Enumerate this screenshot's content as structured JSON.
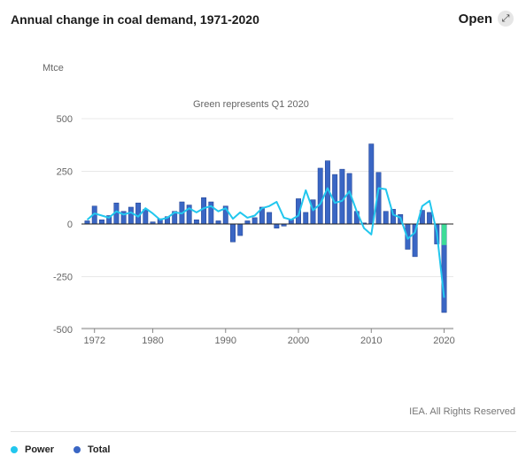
{
  "header": {
    "title": "Annual change in coal demand, 1971-2020",
    "open_label": "Open",
    "open_icon": "expand-arrow-icon"
  },
  "chart_data": {
    "type": "bar",
    "title": "Annual change in coal demand, 1971-2020",
    "unit_label": "Mtce",
    "annotation": "Green represents Q1 2020",
    "ylim": [
      -500,
      500
    ],
    "yticks": [
      500,
      250,
      0,
      -250,
      -500
    ],
    "ytick_labels": [
      "500",
      "250",
      "0",
      "-250",
      "-500"
    ],
    "xticks": [
      1972,
      1980,
      1990,
      2000,
      2010,
      2020
    ],
    "xtick_labels": [
      "1972",
      "1980",
      "1990",
      "2000",
      "2010",
      "2020"
    ],
    "grid": true,
    "legend_position": "bottom-left",
    "colors": {
      "total": "#3a66c4",
      "total_edge": "#1f3f8f",
      "power": "#22c7ee",
      "q1_2020": "#3ddc97"
    },
    "years": [
      1971,
      1972,
      1973,
      1974,
      1975,
      1976,
      1977,
      1978,
      1979,
      1980,
      1981,
      1982,
      1983,
      1984,
      1985,
      1986,
      1987,
      1988,
      1989,
      1990,
      1991,
      1992,
      1993,
      1994,
      1995,
      1996,
      1997,
      1998,
      1999,
      2000,
      2001,
      2002,
      2003,
      2004,
      2005,
      2006,
      2007,
      2008,
      2009,
      2010,
      2011,
      2012,
      2013,
      2014,
      2015,
      2016,
      2017,
      2018,
      2019,
      2020
    ],
    "series": [
      {
        "name": "Total",
        "values": [
          15,
          85,
          20,
          40,
          100,
          60,
          80,
          100,
          70,
          10,
          25,
          35,
          60,
          105,
          90,
          20,
          125,
          105,
          15,
          85,
          -85,
          -55,
          15,
          30,
          80,
          55,
          -20,
          -10,
          20,
          120,
          55,
          115,
          265,
          300,
          235,
          260,
          240,
          60,
          5,
          380,
          245,
          60,
          70,
          45,
          -120,
          -155,
          65,
          55,
          -95,
          -420
        ]
      },
      {
        "name": "Power",
        "values": [
          20,
          50,
          40,
          30,
          60,
          45,
          55,
          35,
          75,
          50,
          20,
          30,
          55,
          50,
          75,
          55,
          75,
          85,
          60,
          75,
          25,
          55,
          30,
          40,
          75,
          85,
          105,
          30,
          20,
          40,
          160,
          65,
          95,
          170,
          100,
          110,
          155,
          60,
          -20,
          -50,
          170,
          165,
          45,
          30,
          -70,
          -40,
          85,
          110,
          -40,
          -350
        ]
      }
    ],
    "q1_2020": {
      "year": 2020,
      "values": [
        -100
      ]
    }
  },
  "footer": {
    "credit": "IEA. All Rights Reserved"
  },
  "legend": [
    {
      "label": "Power",
      "color": "#22c7ee"
    },
    {
      "label": "Total",
      "color": "#3a66c4"
    }
  ]
}
